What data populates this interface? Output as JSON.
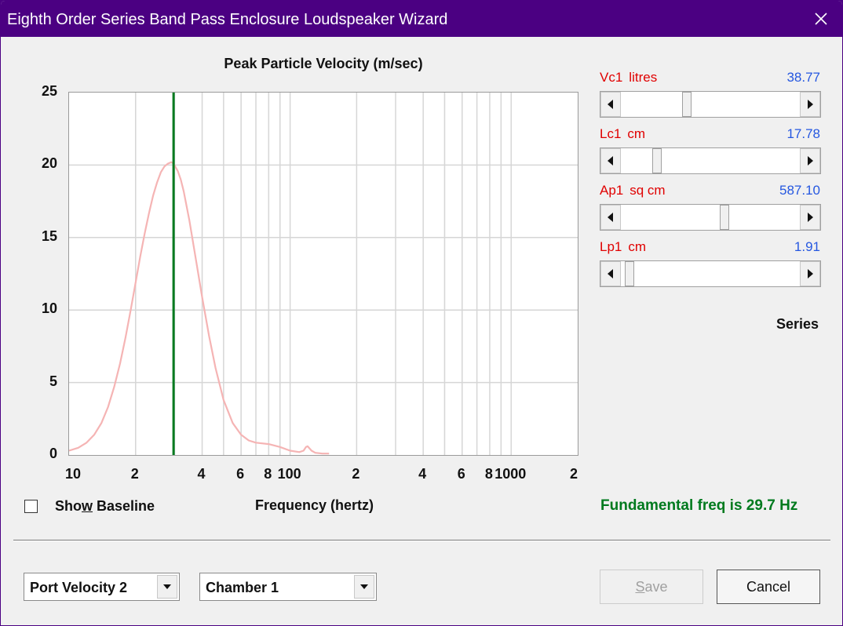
{
  "window": {
    "title": "Eighth Order Series Band Pass Enclosure Loudspeaker Wizard",
    "close_icon": "close-icon"
  },
  "chart_data": {
    "type": "line",
    "title": "Peak Particle Velocity (m/sec)",
    "xlabel": "Frequency (hertz)",
    "ylabel": "",
    "x_scale": "log",
    "xlim": [
      10,
      2000
    ],
    "ylim": [
      0,
      25
    ],
    "grid": true,
    "y_ticks": [
      "25",
      "20",
      "15",
      "10",
      "5",
      "0"
    ],
    "x_ticks": [
      {
        "value": 10,
        "label": "10"
      },
      {
        "value": 20,
        "label": "2"
      },
      {
        "value": 40,
        "label": "4"
      },
      {
        "value": 60,
        "label": "6"
      },
      {
        "value": 80,
        "label": "8"
      },
      {
        "value": 100,
        "label": "100"
      },
      {
        "value": 200,
        "label": "2"
      },
      {
        "value": 400,
        "label": "4"
      },
      {
        "value": 600,
        "label": "6"
      },
      {
        "value": 800,
        "label": "8"
      },
      {
        "value": 1000,
        "label": "1000"
      },
      {
        "value": 2000,
        "label": "2"
      }
    ],
    "marker_line": {
      "x": 29.7,
      "color": "#007a1e"
    },
    "series": [
      {
        "color": "#f5b4b4",
        "x": [
          10,
          11,
          12,
          13,
          14,
          15,
          16,
          17,
          18,
          19,
          20,
          21,
          22,
          23,
          24,
          25,
          26,
          27,
          28,
          29,
          29.7,
          31,
          32,
          33,
          35,
          37,
          40,
          43,
          46,
          50,
          55,
          60,
          65,
          70,
          80,
          90,
          100,
          110,
          115,
          118,
          120,
          125,
          130,
          140,
          150
        ],
        "y": [
          0.3,
          0.5,
          0.85,
          1.4,
          2.2,
          3.3,
          4.7,
          6.3,
          8.1,
          10.0,
          11.9,
          13.7,
          15.3,
          16.7,
          17.9,
          18.8,
          19.5,
          19.9,
          20.1,
          20.2,
          20.1,
          19.6,
          19.0,
          18.2,
          16.2,
          14.0,
          10.9,
          8.2,
          6.0,
          3.8,
          2.2,
          1.4,
          1.0,
          0.85,
          0.75,
          0.55,
          0.3,
          0.2,
          0.3,
          0.55,
          0.6,
          0.3,
          0.15,
          0.1,
          0.1
        ]
      }
    ]
  },
  "controls": {
    "show_baseline_pre": "Sho",
    "show_baseline_u": "w",
    "show_baseline_post": " Baseline",
    "show_baseline_checked": false,
    "fundamental_text": "Fundamental freq is 29.7 Hz",
    "series_label": "Series"
  },
  "params": [
    {
      "name": "Vc1",
      "unit": "litres",
      "value": "38.77",
      "thumb_fraction": 0.37
    },
    {
      "name": "Lc1",
      "unit": "cm",
      "value": "17.78",
      "thumb_fraction": 0.2
    },
    {
      "name": "Ap1",
      "unit": "sq cm",
      "value": "587.10",
      "thumb_fraction": 0.58
    },
    {
      "name": "Lp1",
      "unit": "cm",
      "value": "1.91",
      "thumb_fraction": 0.05
    }
  ],
  "selects": {
    "plot_type": "Port Velocity 2",
    "chamber": "Chamber 1"
  },
  "buttons": {
    "save_u": "S",
    "save_rest": "ave",
    "save_enabled": false,
    "cancel": "Cancel"
  },
  "colors": {
    "title_bar": "#4b0082",
    "param_label": "#e00000",
    "param_value": "#2557e0",
    "fundamental_text": "#007a1e"
  }
}
